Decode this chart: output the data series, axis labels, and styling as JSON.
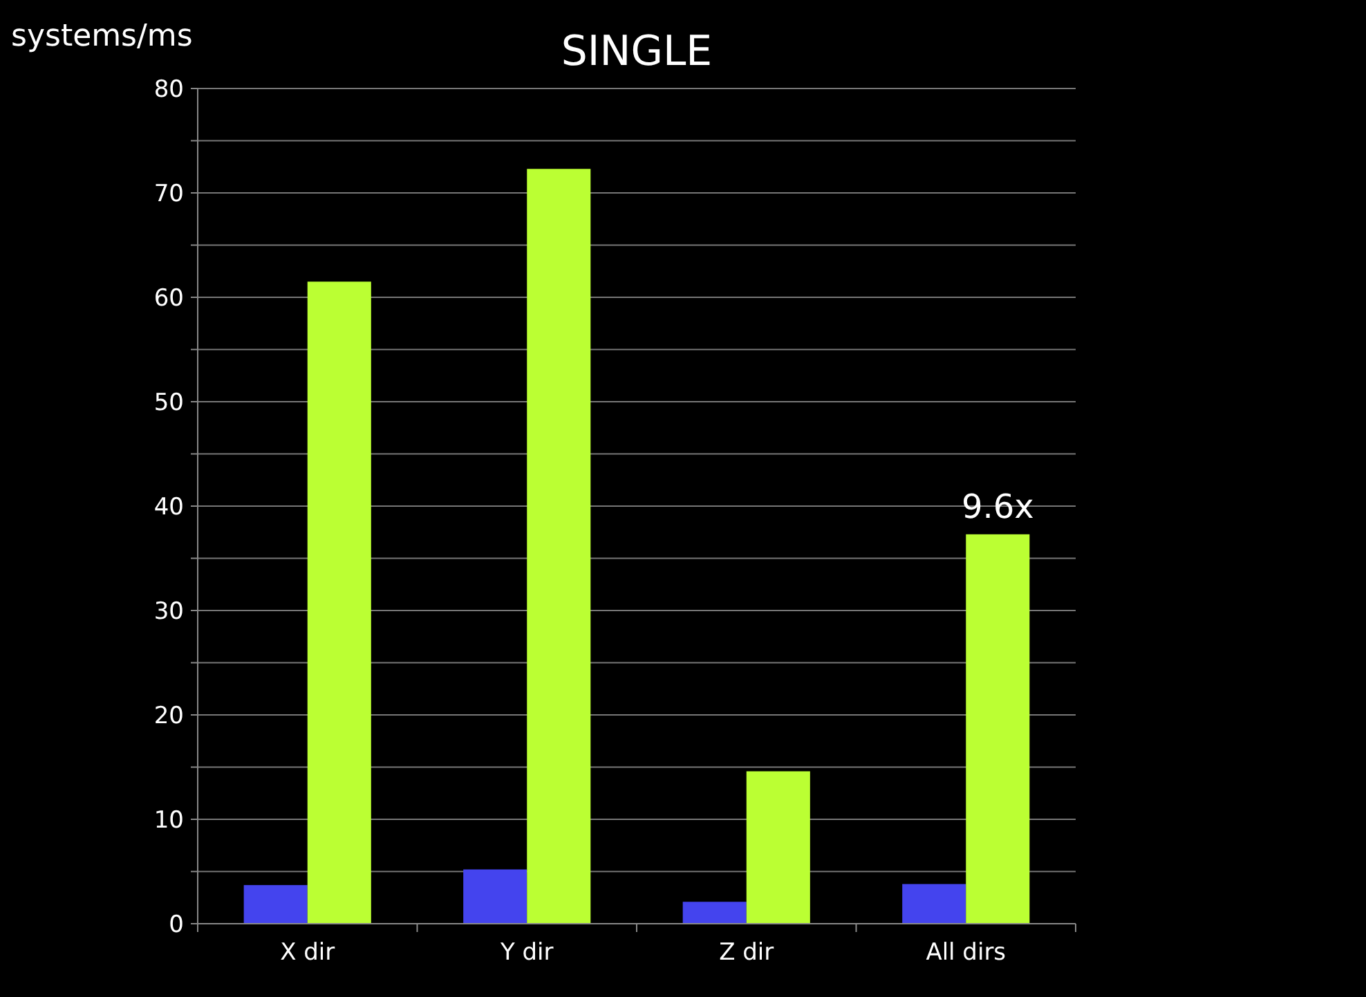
{
  "chart_data": {
    "type": "bar",
    "title": "SINGLE",
    "ylabel": "systems/ms",
    "categories": [
      "X dir",
      "Y dir",
      "Z dir",
      "All dirs"
    ],
    "series": [
      {
        "color": "#4444ee",
        "values": [
          3.7,
          5.2,
          2.1,
          3.8
        ]
      },
      {
        "color": "#bbff33",
        "values": [
          61.5,
          72.3,
          14.6,
          37.3
        ]
      }
    ],
    "ylim": [
      0,
      80
    ],
    "yticks": [
      0,
      {
        "value": 5,
        "label": null
      },
      10,
      {
        "value": 15,
        "label": null
      },
      20,
      {
        "value": 25,
        "label": null
      },
      30,
      {
        "value": 35,
        "label": null
      },
      40,
      {
        "value": 45,
        "label": null
      },
      50,
      {
        "value": 55,
        "label": null
      },
      60,
      {
        "value": 65,
        "label": null
      },
      70,
      {
        "value": 75,
        "label": null
      },
      80
    ],
    "grid": "y",
    "annotations": [
      {
        "text": "9.6x",
        "x": "All dirs",
        "y": 37.3
      }
    ]
  }
}
